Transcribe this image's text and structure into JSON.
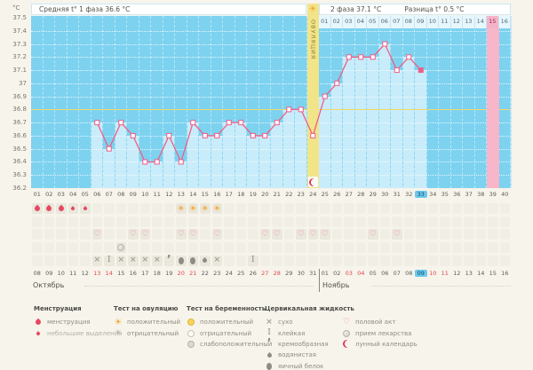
{
  "unit": "°C",
  "header": {
    "avg_phase1": "Средняя t° 1 фаза 36.6 °C",
    "phase2": "2 фаза 37.1 °C",
    "difference": "Разница t° 0.5 °C"
  },
  "ovulation_label": "ОВУЛЯЦИЯ",
  "months": {
    "first": "Октябрь",
    "second": "Ноябрь"
  },
  "chart_data": {
    "type": "line",
    "ylabel": "°C",
    "ylim": [
      36.2,
      37.5
    ],
    "yticks": [
      "37.5",
      "37.4",
      "37.3",
      "37.2",
      "37.1",
      "37",
      "36.9",
      "36.8",
      "36.7",
      "36.6",
      "36.5",
      "36.4",
      "36.3",
      "36.2"
    ],
    "coverline_temp": 36.8,
    "grid": true,
    "x_day_labels": [
      "01",
      "02",
      "03",
      "04",
      "05",
      "06",
      "07",
      "08",
      "09",
      "10",
      "11",
      "12",
      "13",
      "14",
      "15",
      "16",
      "17",
      "18",
      "19",
      "20",
      "21",
      "22",
      "23",
      "24",
      "25",
      "26",
      "27",
      "28",
      "29",
      "30",
      "31",
      "32",
      "33",
      "34",
      "35",
      "36",
      "37",
      "38",
      "39",
      "40"
    ],
    "series": [
      {
        "points": [
          [
            6,
            36.7
          ],
          [
            7,
            36.5
          ],
          [
            8,
            36.7
          ],
          [
            9,
            36.6
          ],
          [
            10,
            36.4
          ],
          [
            11,
            36.4
          ],
          [
            12,
            36.6
          ],
          [
            13,
            36.4
          ],
          [
            14,
            36.7
          ],
          [
            15,
            36.6
          ],
          [
            16,
            36.6
          ],
          [
            17,
            36.7
          ],
          [
            18,
            36.7
          ],
          [
            19,
            36.6
          ],
          [
            20,
            36.6
          ],
          [
            21,
            36.7
          ],
          [
            22,
            36.8
          ],
          [
            23,
            36.8
          ],
          [
            24,
            36.6
          ],
          [
            25,
            36.9
          ],
          [
            26,
            37.0
          ],
          [
            27,
            37.2
          ],
          [
            28,
            37.2
          ],
          [
            29,
            37.2
          ],
          [
            30,
            37.3
          ],
          [
            31,
            37.1
          ],
          [
            32,
            37.2
          ],
          [
            33,
            37.1
          ]
        ]
      }
    ],
    "today_cycle_day": 33,
    "ovulation_cycle_day": 24,
    "expected_period_cycle_day": 39,
    "dpo_labels": [
      "01",
      "02",
      "03",
      "04",
      "05",
      "06",
      "07",
      "08",
      "09",
      "10",
      "11",
      "12",
      "13",
      "14",
      "15",
      "16"
    ],
    "dpo_start_cycle_day": 25,
    "dpo_highlighted": "15"
  },
  "calendar": {
    "dates": [
      "08",
      "09",
      "10",
      "11",
      "12",
      "13",
      "14",
      "15",
      "16",
      "17",
      "18",
      "19",
      "20",
      "21",
      "22",
      "23",
      "24",
      "25",
      "26",
      "27",
      "28",
      "29",
      "30",
      "31",
      "01",
      "02",
      "03",
      "04",
      "05",
      "06",
      "07",
      "08",
      "09",
      "10",
      "11",
      "12",
      "13",
      "14",
      "15",
      "16"
    ],
    "weekend_cycle_days": [
      6,
      7,
      13,
      14,
      20,
      21,
      27,
      28,
      34,
      35
    ],
    "today_cycle_day": 33
  },
  "events": {
    "menstruation": [
      {
        "day": 1,
        "icon": "drop"
      },
      {
        "day": 2,
        "icon": "drop"
      },
      {
        "day": 3,
        "icon": "drop"
      },
      {
        "day": 4,
        "icon": "drop-small"
      },
      {
        "day": 5,
        "icon": "drop-small"
      }
    ],
    "ovulation_tests": [
      {
        "day": 13,
        "icon": "sun-pos"
      },
      {
        "day": 14,
        "icon": "sun-pos"
      },
      {
        "day": 15,
        "icon": "sun-pos"
      },
      {
        "day": 16,
        "icon": "sun-pos"
      }
    ],
    "pregnancy_tests": [],
    "intercourse_days": [
      6,
      9,
      10,
      13,
      14,
      16,
      20,
      21,
      23,
      24,
      25,
      29,
      31
    ],
    "medicine_days": [
      8
    ],
    "cervical_fluid": [
      {
        "day": 6,
        "type": "dry"
      },
      {
        "day": 7,
        "type": "sticky"
      },
      {
        "day": 8,
        "type": "dry"
      },
      {
        "day": 9,
        "type": "dry"
      },
      {
        "day": 10,
        "type": "dry"
      },
      {
        "day": 11,
        "type": "dry"
      },
      {
        "day": 12,
        "type": "creamy"
      },
      {
        "day": 13,
        "type": "egg"
      },
      {
        "day": 14,
        "type": "egg"
      },
      {
        "day": 15,
        "type": "watery"
      },
      {
        "day": 16,
        "type": "dry"
      },
      {
        "day": 19,
        "type": "sticky"
      }
    ],
    "lunar_day": 24
  },
  "legend": {
    "columns": [
      {
        "title": "Менструация",
        "items": [
          {
            "icon": "drop",
            "label": "менструация"
          },
          {
            "icon": "drop-small",
            "label": "небольшие выделения",
            "lighter": true
          }
        ]
      },
      {
        "title": "Тест на овуляцию",
        "items": [
          {
            "icon": "sun-pos",
            "label": "положительный"
          },
          {
            "icon": "sun-neg",
            "label": "отрицательный"
          }
        ]
      },
      {
        "title": "Тест на беременность",
        "items": [
          {
            "icon": "test-pos",
            "label": "положительный"
          },
          {
            "icon": "test-neg",
            "label": "отрицательный"
          },
          {
            "icon": "test-weak",
            "label": "слабоположительный"
          }
        ]
      },
      {
        "title": "Цервикальная жидкость",
        "items": [
          {
            "icon": "dry",
            "label": "сухо"
          },
          {
            "icon": "sticky",
            "label": "клейкая"
          },
          {
            "icon": "creamy",
            "label": "кремообразная"
          },
          {
            "icon": "watery",
            "label": "водянистая"
          },
          {
            "icon": "egg",
            "label": "яичный белок"
          }
        ]
      },
      {
        "title": "",
        "items": [
          {
            "icon": "heart",
            "label": "половой акт"
          },
          {
            "icon": "med",
            "label": "прием лекарства"
          },
          {
            "icon": "moon",
            "label": "лунный календарь"
          }
        ]
      }
    ]
  },
  "colors": {
    "chart_blue": "#7dd2f0",
    "fill_blue": "#c9ecfa",
    "temp_line": "#ee5f87",
    "ovulation_yellow": "#f2e489",
    "coverline_yellow": "#f2d76a",
    "period_pink": "#f7b6c9",
    "weekend_red": "#e04848",
    "today_blue": "#6cc9ec",
    "menses_red": "#e6485f",
    "sun_orange": "#f2a52e"
  }
}
